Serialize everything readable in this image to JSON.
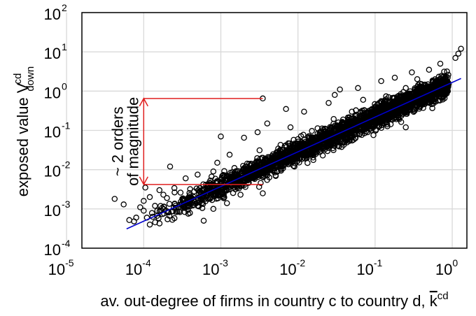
{
  "chart_data": {
    "type": "scatter",
    "xlabel": "av. out-degree of firms in country c to country d, ",
    "xlabel_symbol": "k",
    "xlabel_sup": "cd",
    "ylabel": "exposed value V",
    "ylabel_sup": "cd",
    "ylabel_sub": "down",
    "x_scale": "log",
    "y_scale": "log",
    "xlim": [
      1.58e-05,
      1.55
    ],
    "ylim": [
      0.0001,
      100
    ],
    "grid": true,
    "x_ticks": [
      {
        "base": "10",
        "exp": "-5",
        "value": 1e-05
      },
      {
        "base": "10",
        "exp": "-4",
        "value": 0.0001
      },
      {
        "base": "10",
        "exp": "-3",
        "value": 0.001
      },
      {
        "base": "10",
        "exp": "-2",
        "value": 0.01
      },
      {
        "base": "10",
        "exp": "-1",
        "value": 0.1
      },
      {
        "base": "10",
        "exp": "0",
        "value": 1
      }
    ],
    "y_ticks": [
      {
        "base": "10",
        "exp": "-4",
        "value": 0.0001
      },
      {
        "base": "10",
        "exp": "-3",
        "value": 0.001
      },
      {
        "base": "10",
        "exp": "-2",
        "value": 0.01
      },
      {
        "base": "10",
        "exp": "-1",
        "value": 0.1
      },
      {
        "base": "10",
        "exp": "0",
        "value": 1
      },
      {
        "base": "10",
        "exp": "1",
        "value": 10
      },
      {
        "base": "10",
        "exp": "2",
        "value": 100
      }
    ],
    "points": [
      [
        4.2e-05,
        0.0018
      ],
      [
        5.5e-05,
        0.0013
      ],
      [
        6.5e-05,
        0.00052
      ],
      [
        7.5e-05,
        0.00048
      ],
      [
        8e-05,
        0.0006
      ],
      [
        9e-05,
        0.0011
      ],
      [
        0.0001,
        0.0009
      ],
      [
        0.0001,
        0.0016
      ],
      [
        0.000105,
        0.0035
      ],
      [
        0.00011,
        0.0006
      ],
      [
        0.00012,
        0.002
      ],
      [
        0.00012,
        0.0004
      ],
      [
        0.00014,
        0.0012
      ],
      [
        0.00015,
        0.0009
      ],
      [
        0.00016,
        0.003
      ],
      [
        0.00018,
        0.0023
      ],
      [
        0.0002,
        0.0019
      ],
      [
        0.00022,
        0.012
      ],
      [
        0.00025,
        0.0034
      ],
      [
        0.0003,
        0.0026
      ],
      [
        0.00035,
        0.006
      ],
      [
        0.0004,
        0.0032
      ],
      [
        0.00045,
        0.0028
      ],
      [
        0.0005,
        0.0012
      ],
      [
        0.0005,
        0.0075
      ],
      [
        0.0006,
        0.0025
      ],
      [
        0.0006,
        0.0005
      ],
      [
        0.0007,
        0.004
      ],
      [
        0.0008,
        0.001
      ],
      [
        0.0008,
        0.009
      ],
      [
        0.0009,
        0.015
      ],
      [
        0.001,
        0.0045
      ],
      [
        0.001,
        0.07
      ],
      [
        0.0012,
        0.007
      ],
      [
        0.0012,
        0.0014
      ],
      [
        0.0013,
        0.024
      ],
      [
        0.0015,
        0.011
      ],
      [
        0.0018,
        0.0023
      ],
      [
        0.002,
        0.065
      ],
      [
        0.002,
        0.004
      ],
      [
        0.0025,
        0.014
      ],
      [
        0.003,
        0.09
      ],
      [
        0.0035,
        0.65
      ],
      [
        0.0035,
        0.02
      ],
      [
        0.0035,
        0.0025
      ],
      [
        0.004,
        0.15
      ],
      [
        0.005,
        0.02
      ],
      [
        0.006,
        0.011
      ],
      [
        0.007,
        0.042
      ],
      [
        0.007,
        0.35
      ],
      [
        0.008,
        0.12
      ],
      [
        0.009,
        0.012
      ],
      [
        0.01,
        0.06
      ],
      [
        0.012,
        0.3
      ],
      [
        0.015,
        0.025
      ],
      [
        0.02,
        0.09
      ],
      [
        0.025,
        0.5
      ],
      [
        0.03,
        0.04
      ],
      [
        0.03,
        0.8
      ],
      [
        0.035,
        1.1
      ],
      [
        0.04,
        0.15
      ],
      [
        0.05,
        0.3
      ],
      [
        0.06,
        1.2
      ],
      [
        0.07,
        0.6
      ],
      [
        0.08,
        0.09
      ],
      [
        0.1,
        0.4
      ],
      [
        0.12,
        1.8
      ],
      [
        0.13,
        0.2
      ],
      [
        0.15,
        0.7
      ],
      [
        0.18,
        2.2
      ],
      [
        0.2,
        0.3
      ],
      [
        0.25,
        1.2
      ],
      [
        0.25,
        0.12
      ],
      [
        0.3,
        3.0
      ],
      [
        0.35,
        0.8
      ],
      [
        0.4,
        1.5
      ],
      [
        0.5,
        3.5
      ],
      [
        0.6,
        2.0
      ],
      [
        0.7,
        5.0
      ],
      [
        0.9,
        1.5
      ],
      [
        1.1,
        7.0
      ],
      [
        1.2,
        9.0
      ],
      [
        1.3,
        12.0
      ]
    ],
    "fit_line": {
      "color": "#0000cc",
      "x": [
        6e-05,
        1.3
      ],
      "y": [
        0.00031,
        2.1
      ]
    },
    "annotation": {
      "text_line1": "~ 2 orders",
      "text_line2": "of magnitude",
      "color": "#e02020",
      "top": {
        "x_from": 0.0001,
        "x_to": 0.0035,
        "y": 0.65
      },
      "bottom": {
        "x_from": 0.0001,
        "x_to": 0.0035,
        "y": 0.0042
      },
      "arrow_x": 0.0001
    }
  }
}
